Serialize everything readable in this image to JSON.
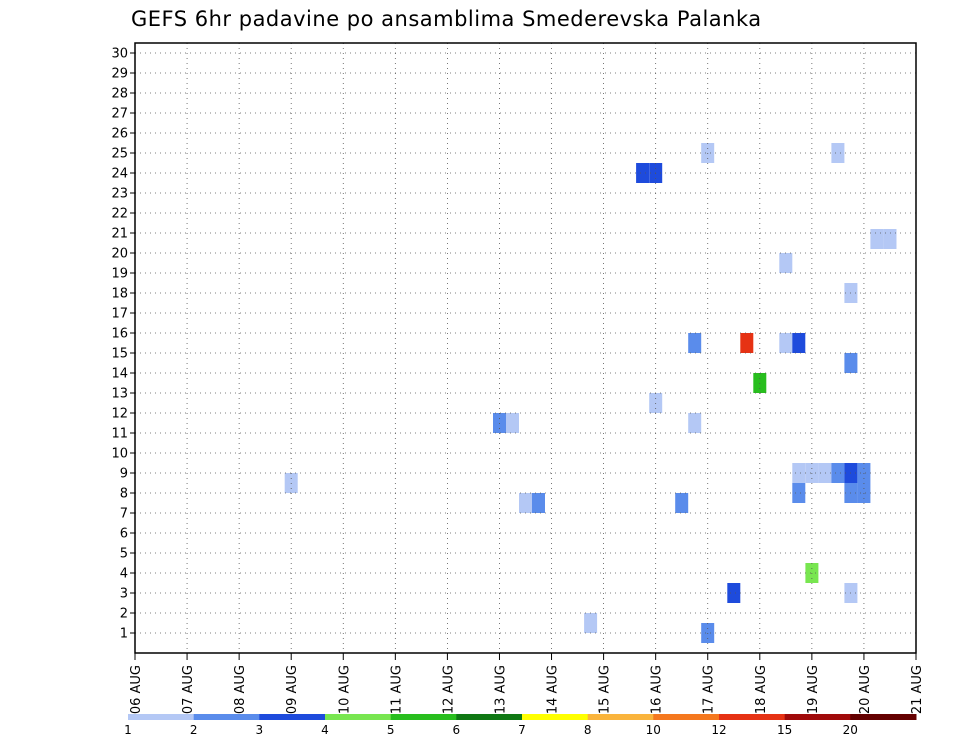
{
  "chart_data": {
    "type": "heatmap",
    "title": "GEFS 6hr padavine po ansamblima Smederevska Palanka",
    "xlabel": "",
    "ylabel": "",
    "x_ticks": [
      "06 AUG",
      "07 AUG",
      "08 AUG",
      "09 AUG",
      "10 AUG",
      "11 AUG",
      "12 AUG",
      "13 AUG",
      "14 AUG",
      "15 AUG",
      "16 AUG",
      "17 AUG",
      "18 AUG",
      "19 AUG",
      "20 AUG",
      "21 AUG"
    ],
    "y_ticks": [
      1,
      2,
      3,
      4,
      5,
      6,
      7,
      8,
      9,
      10,
      11,
      12,
      13,
      14,
      15,
      16,
      17,
      18,
      19,
      20,
      21,
      22,
      23,
      24,
      25,
      26,
      27,
      28,
      29,
      30
    ],
    "xlim_days": [
      0,
      15
    ],
    "ylim": [
      0,
      30.5
    ],
    "grid": true,
    "colorbar": {
      "levels": [
        "1",
        "2",
        "3",
        "4",
        "5",
        "6",
        "7",
        "8",
        "10",
        "12",
        "15",
        "20"
      ],
      "colors": [
        "#b4c8f5",
        "#5a8ceb",
        "#1e4bdc",
        "#78e650",
        "#28be1e",
        "#0f7814",
        "#ffff00",
        "#fab43c",
        "#f5781e",
        "#e63214",
        "#a00a0a",
        "#640000"
      ]
    },
    "cells": [
      {
        "day": 3.0,
        "member": 8.5,
        "c": 0
      },
      {
        "day": 7.0,
        "member": 11.5,
        "c": 1
      },
      {
        "day": 7.25,
        "member": 11.5,
        "c": 0
      },
      {
        "day": 7.5,
        "member": 7.5,
        "c": 0
      },
      {
        "day": 7.75,
        "member": 7.5,
        "c": 1
      },
      {
        "day": 8.75,
        "member": 1.5,
        "c": 0
      },
      {
        "day": 9.75,
        "member": 24,
        "c": 2
      },
      {
        "day": 10.0,
        "member": 24,
        "c": 2
      },
      {
        "day": 10.0,
        "member": 12.5,
        "c": 0
      },
      {
        "day": 10.5,
        "member": 7.5,
        "c": 1
      },
      {
        "day": 10.75,
        "member": 15.5,
        "c": 1
      },
      {
        "day": 10.75,
        "member": 11.5,
        "c": 0
      },
      {
        "day": 11.0,
        "member": 25,
        "c": 0
      },
      {
        "day": 11.0,
        "member": 1,
        "c": 1
      },
      {
        "day": 11.5,
        "member": 3,
        "c": 2
      },
      {
        "day": 11.75,
        "member": 15.5,
        "c": 9
      },
      {
        "day": 12.0,
        "member": 13.5,
        "c": 4
      },
      {
        "day": 12.5,
        "member": 19.5,
        "c": 0
      },
      {
        "day": 12.5,
        "member": 15.5,
        "c": 0
      },
      {
        "day": 12.75,
        "member": 15.5,
        "c": 2
      },
      {
        "day": 12.75,
        "member": 9,
        "c": 0
      },
      {
        "day": 12.75,
        "member": 8,
        "c": 1
      },
      {
        "day": 13.0,
        "member": 9,
        "c": 0
      },
      {
        "day": 13.0,
        "member": 4,
        "c": 3
      },
      {
        "day": 13.25,
        "member": 9,
        "c": 0
      },
      {
        "day": 13.5,
        "member": 25,
        "c": 0
      },
      {
        "day": 13.5,
        "member": 9,
        "c": 1
      },
      {
        "day": 13.75,
        "member": 9,
        "c": 2
      },
      {
        "day": 13.75,
        "member": 18,
        "c": 0
      },
      {
        "day": 13.75,
        "member": 14.5,
        "c": 1
      },
      {
        "day": 13.75,
        "member": 8,
        "c": 1
      },
      {
        "day": 13.75,
        "member": 3,
        "c": 0
      },
      {
        "day": 14.0,
        "member": 9,
        "c": 1
      },
      {
        "day": 14.0,
        "member": 8,
        "c": 1
      },
      {
        "day": 14.25,
        "member": 20.7,
        "c": 0
      },
      {
        "day": 14.5,
        "member": 20.7,
        "c": 0
      }
    ]
  }
}
